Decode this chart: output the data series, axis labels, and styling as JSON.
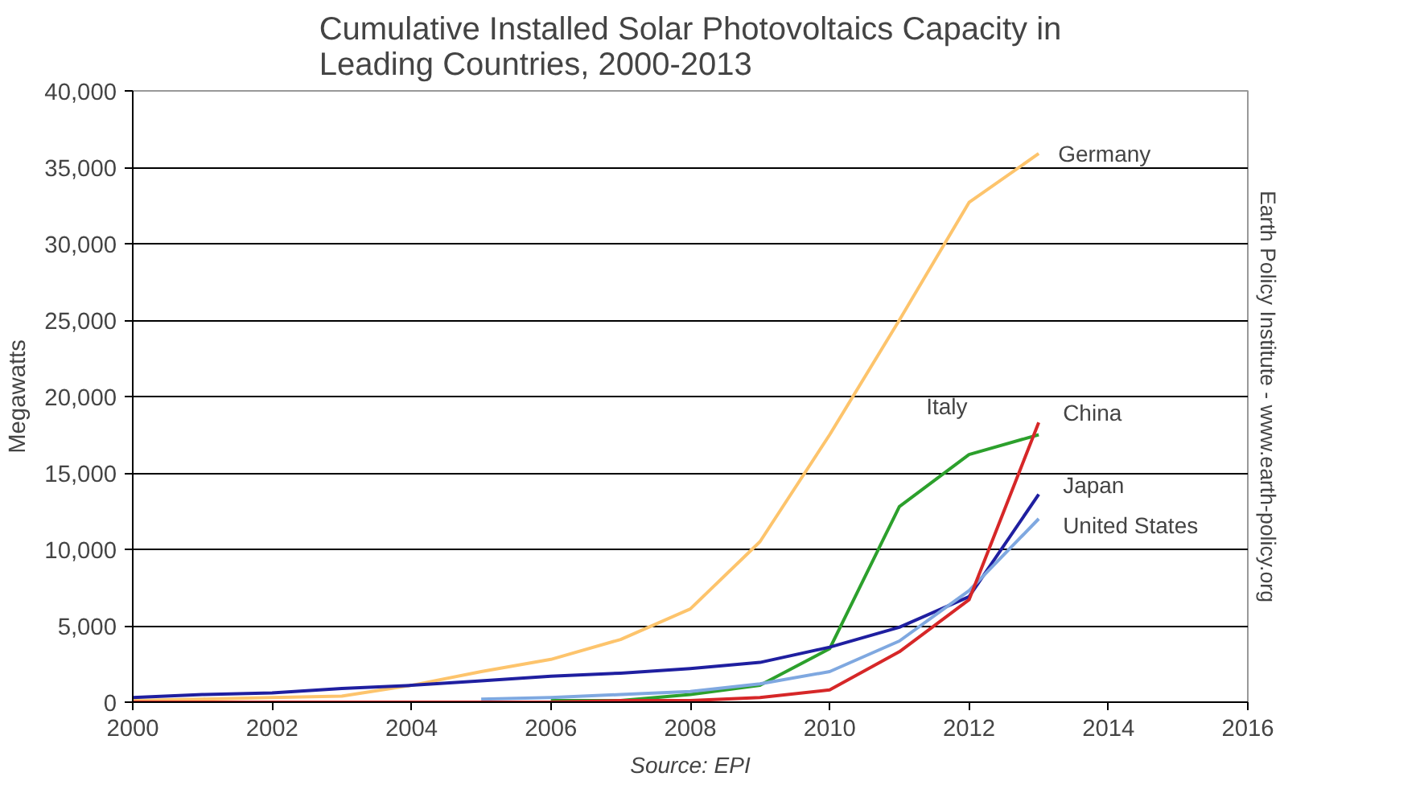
{
  "chart_data": {
    "type": "line",
    "title": "Cumulative Installed Solar Photovoltaics Capacity in\nLeading Countries, 2000-2013",
    "ylabel": "Megawatts",
    "x": [
      2000,
      2001,
      2002,
      2003,
      2004,
      2005,
      2006,
      2007,
      2008,
      2009,
      2010,
      2011,
      2012,
      2013
    ],
    "series": [
      {
        "name": "Germany",
        "color": "#fdc46c",
        "values": [
          100,
          200,
          300,
          400,
          1100,
          2000,
          2800,
          4100,
          6100,
          10500,
          17500,
          25000,
          32700,
          35900
        ]
      },
      {
        "name": "Italy",
        "color": "#2ca02c",
        "x": [
          2006,
          2007,
          2008,
          2009,
          2010,
          2011,
          2012,
          2013
        ],
        "values": [
          100,
          100,
          500,
          1100,
          3500,
          12800,
          16200,
          17500
        ]
      },
      {
        "name": "Japan",
        "color": "#1f1fa0",
        "values": [
          300,
          500,
          600,
          900,
          1100,
          1400,
          1700,
          1900,
          2200,
          2600,
          3600,
          4900,
          6900,
          13600
        ]
      },
      {
        "name": "United States",
        "color": "#7fa8e0",
        "x": [
          2005,
          2006,
          2007,
          2008,
          2009,
          2010,
          2011,
          2012,
          2013
        ],
        "values": [
          200,
          300,
          500,
          700,
          1200,
          2000,
          4000,
          7300,
          12000
        ]
      },
      {
        "name": "China",
        "color": "#d62728",
        "values": [
          0,
          0,
          0,
          0,
          0,
          0,
          0,
          100,
          100,
          300,
          800,
          3300,
          6700,
          18300
        ]
      }
    ],
    "xlim": [
      2000,
      2016
    ],
    "xticks": [
      2000,
      2002,
      2004,
      2006,
      2008,
      2010,
      2012,
      2014,
      2016
    ],
    "ylim": [
      0,
      40000
    ],
    "yticks": [
      {
        "value": 0,
        "label": "0"
      },
      {
        "value": 5000,
        "label": "5,000"
      },
      {
        "value": 10000,
        "label": "10,000"
      },
      {
        "value": 15000,
        "label": "15,000"
      },
      {
        "value": 20000,
        "label": "20,000"
      },
      {
        "value": 25000,
        "label": "25,000"
      },
      {
        "value": 30000,
        "label": "30,000"
      },
      {
        "value": 35000,
        "label": "35,000"
      },
      {
        "value": 40000,
        "label": "40,000"
      }
    ],
    "grid": "y",
    "annotations": [
      "Source: EPI",
      "Earth Policy Institute - www.earth-policy.org"
    ]
  }
}
